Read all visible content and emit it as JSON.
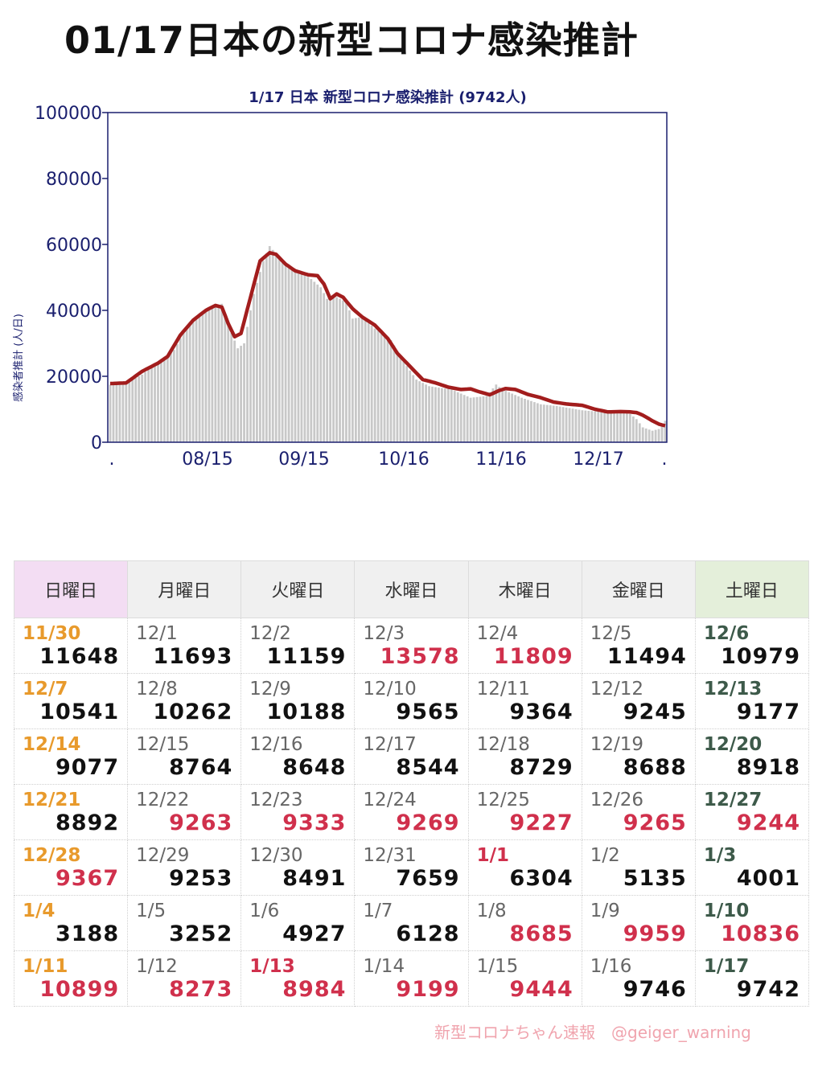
{
  "page": {
    "title": "01/17日本の新型コロナ感染推計"
  },
  "colors": {
    "line": "#a21d1d",
    "bars": "#c8c8c8",
    "axis": "#1a1f6e",
    "highlight": "#d0304c",
    "sunday": "#e89a2c",
    "saturday": "#3d5a4a"
  },
  "chart_data": {
    "type": "bar",
    "title": "1/17 日本 新型コロナ感染推計 (9742人)",
    "ylabel": "感染者推計 (人/日)",
    "xlabel": "",
    "ylim": [
      0,
      100000
    ],
    "yticks": [
      "0",
      "20000",
      "40000",
      "60000",
      "80000",
      "100000"
    ],
    "xticks": [
      ".",
      "08/15",
      "09/15",
      "10/16",
      "11/16",
      "12/17",
      "."
    ],
    "grid": false,
    "bars_knots": [
      [
        0,
        17500
      ],
      [
        5,
        18000
      ],
      [
        10,
        20500
      ],
      [
        15,
        24500
      ],
      [
        20,
        28000
      ],
      [
        24,
        35000
      ],
      [
        28,
        38000
      ],
      [
        32,
        41000
      ],
      [
        35,
        42000
      ],
      [
        37,
        35500
      ],
      [
        40,
        28500
      ],
      [
        42,
        30000
      ],
      [
        45,
        45000
      ],
      [
        48,
        55000
      ],
      [
        50,
        59500
      ],
      [
        53,
        56000
      ],
      [
        57,
        53000
      ],
      [
        60,
        51500
      ],
      [
        63,
        49500
      ],
      [
        66,
        47000
      ],
      [
        68,
        43500
      ],
      [
        71,
        44000
      ],
      [
        74,
        42500
      ],
      [
        76,
        37500
      ],
      [
        79,
        38000
      ],
      [
        83,
        34500
      ],
      [
        88,
        31000
      ],
      [
        92,
        24500
      ],
      [
        96,
        19000
      ],
      [
        100,
        17000
      ],
      [
        107,
        16000
      ],
      [
        113,
        13500
      ],
      [
        118,
        14000
      ],
      [
        121,
        17500
      ],
      [
        123,
        16000
      ],
      [
        129,
        13500
      ],
      [
        135,
        11500
      ],
      [
        140,
        11000
      ],
      [
        148,
        9700
      ],
      [
        155,
        9100
      ],
      [
        160,
        9300
      ],
      [
        163,
        8600
      ],
      [
        165,
        7000
      ],
      [
        167,
        4500
      ],
      [
        170,
        3500
      ],
      [
        172,
        4000
      ],
      [
        174,
        6500
      ]
    ],
    "line_knots": [
      [
        0,
        17800
      ],
      [
        5,
        18000
      ],
      [
        10,
        21500
      ],
      [
        15,
        24000
      ],
      [
        18,
        26000
      ],
      [
        22,
        32500
      ],
      [
        26,
        37000
      ],
      [
        30,
        40000
      ],
      [
        33,
        41500
      ],
      [
        35,
        41000
      ],
      [
        37,
        36000
      ],
      [
        39,
        32000
      ],
      [
        41,
        33000
      ],
      [
        44,
        44000
      ],
      [
        47,
        55000
      ],
      [
        50,
        57500
      ],
      [
        52,
        57000
      ],
      [
        55,
        54000
      ],
      [
        58,
        52000
      ],
      [
        62,
        50800
      ],
      [
        65,
        50500
      ],
      [
        67,
        48000
      ],
      [
        69,
        43500
      ],
      [
        71,
        45000
      ],
      [
        73,
        44000
      ],
      [
        76,
        40500
      ],
      [
        79,
        38000
      ],
      [
        83,
        35500
      ],
      [
        87,
        31500
      ],
      [
        90,
        27000
      ],
      [
        94,
        23000
      ],
      [
        98,
        19000
      ],
      [
        102,
        18000
      ],
      [
        106,
        16700
      ],
      [
        110,
        16000
      ],
      [
        113,
        16200
      ],
      [
        115,
        15500
      ],
      [
        119,
        14400
      ],
      [
        122,
        15700
      ],
      [
        124,
        16300
      ],
      [
        127,
        16000
      ],
      [
        131,
        14500
      ],
      [
        135,
        13500
      ],
      [
        139,
        12200
      ],
      [
        143,
        11600
      ],
      [
        148,
        11200
      ],
      [
        152,
        10000
      ],
      [
        156,
        9200
      ],
      [
        160,
        9300
      ],
      [
        163,
        9200
      ],
      [
        165,
        9000
      ],
      [
        167,
        8200
      ],
      [
        170,
        6500
      ],
      [
        172,
        5500
      ],
      [
        174,
        5000
      ]
    ],
    "x_days": 174,
    "series": [
      {
        "values_ref": "bars_knots",
        "type": "bar"
      },
      {
        "values_ref": "line_knots",
        "type": "line"
      }
    ]
  },
  "calendar": {
    "headers": [
      {
        "label": "日曜日",
        "kind": "sun"
      },
      {
        "label": "月曜日",
        "kind": ""
      },
      {
        "label": "火曜日",
        "kind": ""
      },
      {
        "label": "水曜日",
        "kind": ""
      },
      {
        "label": "木曜日",
        "kind": ""
      },
      {
        "label": "金曜日",
        "kind": ""
      },
      {
        "label": "土曜日",
        "kind": "sat"
      }
    ],
    "weeks": [
      [
        {
          "date": "11/30",
          "value": "11648"
        },
        {
          "date": "12/1",
          "value": "11693"
        },
        {
          "date": "12/2",
          "value": "11159"
        },
        {
          "date": "12/3",
          "value": "13578",
          "value_red": true
        },
        {
          "date": "12/4",
          "value": "11809",
          "value_red": true
        },
        {
          "date": "12/5",
          "value": "11494"
        },
        {
          "date": "12/6",
          "value": "10979"
        }
      ],
      [
        {
          "date": "12/7",
          "value": "10541"
        },
        {
          "date": "12/8",
          "value": "10262"
        },
        {
          "date": "12/9",
          "value": "10188"
        },
        {
          "date": "12/10",
          "value": "9565"
        },
        {
          "date": "12/11",
          "value": "9364"
        },
        {
          "date": "12/12",
          "value": "9245"
        },
        {
          "date": "12/13",
          "value": "9177"
        }
      ],
      [
        {
          "date": "12/14",
          "value": "9077"
        },
        {
          "date": "12/15",
          "value": "8764"
        },
        {
          "date": "12/16",
          "value": "8648"
        },
        {
          "date": "12/17",
          "value": "8544"
        },
        {
          "date": "12/18",
          "value": "8729"
        },
        {
          "date": "12/19",
          "value": "8688"
        },
        {
          "date": "12/20",
          "value": "8918"
        }
      ],
      [
        {
          "date": "12/21",
          "value": "8892"
        },
        {
          "date": "12/22",
          "value": "9263",
          "value_red": true
        },
        {
          "date": "12/23",
          "value": "9333",
          "value_red": true
        },
        {
          "date": "12/24",
          "value": "9269",
          "value_red": true
        },
        {
          "date": "12/25",
          "value": "9227",
          "value_red": true
        },
        {
          "date": "12/26",
          "value": "9265",
          "value_red": true
        },
        {
          "date": "12/27",
          "value": "9244",
          "value_red": true
        }
      ],
      [
        {
          "date": "12/28",
          "value": "9367",
          "value_red": true
        },
        {
          "date": "12/29",
          "value": "9253"
        },
        {
          "date": "12/30",
          "value": "8491"
        },
        {
          "date": "12/31",
          "value": "7659"
        },
        {
          "date": "1/1",
          "value": "6304",
          "date_red": true
        },
        {
          "date": "1/2",
          "value": "5135"
        },
        {
          "date": "1/3",
          "value": "4001"
        }
      ],
      [
        {
          "date": "1/4",
          "value": "3188"
        },
        {
          "date": "1/5",
          "value": "3252"
        },
        {
          "date": "1/6",
          "value": "4927"
        },
        {
          "date": "1/7",
          "value": "6128"
        },
        {
          "date": "1/8",
          "value": "8685",
          "value_red": true
        },
        {
          "date": "1/9",
          "value": "9959",
          "value_red": true
        },
        {
          "date": "1/10",
          "value": "10836",
          "value_red": true
        }
      ],
      [
        {
          "date": "1/11",
          "value": "10899",
          "value_red": true
        },
        {
          "date": "1/12",
          "value": "8273",
          "value_red": true
        },
        {
          "date": "1/13",
          "value": "8984",
          "value_red": true,
          "date_red": true
        },
        {
          "date": "1/14",
          "value": "9199",
          "value_red": true
        },
        {
          "date": "1/15",
          "value": "9444",
          "value_red": true
        },
        {
          "date": "1/16",
          "value": "9746"
        },
        {
          "date": "1/17",
          "value": "9742"
        }
      ]
    ]
  },
  "footer": {
    "credit": "新型コロナちゃん速報　@geiger_warning"
  }
}
